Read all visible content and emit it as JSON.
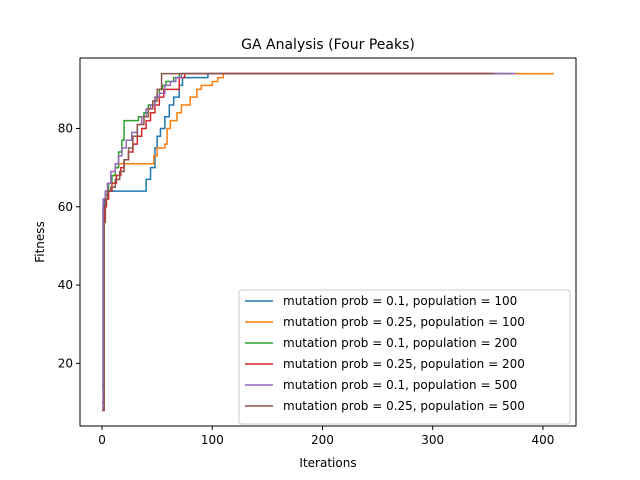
{
  "chart_data": {
    "type": "line",
    "title": "GA Analysis (Four Peaks)",
    "xlabel": "Iterations",
    "ylabel": "Fitness",
    "xlim": [
      -20,
      430
    ],
    "ylim": [
      4,
      98
    ],
    "xticks": [
      0,
      100,
      200,
      300,
      400
    ],
    "yticks": [
      20,
      40,
      60,
      80
    ],
    "grid": false,
    "legend_position": "lower-right",
    "series": [
      {
        "name": "mutation prob = 0.1, population = 100",
        "color": "#1f77b4",
        "points": [
          [
            0,
            8
          ],
          [
            1,
            60
          ],
          [
            2,
            62
          ],
          [
            3,
            63
          ],
          [
            5,
            64
          ],
          [
            10,
            64
          ],
          [
            38,
            64
          ],
          [
            40,
            67
          ],
          [
            44,
            70
          ],
          [
            48,
            75
          ],
          [
            50,
            78
          ],
          [
            53,
            80
          ],
          [
            57,
            83
          ],
          [
            61,
            86
          ],
          [
            65,
            88
          ],
          [
            70,
            91
          ],
          [
            73,
            93
          ],
          [
            95,
            93
          ],
          [
            96,
            94
          ],
          [
            380,
            94
          ]
        ]
      },
      {
        "name": "mutation prob = 0.25, population = 100",
        "color": "#ff7f0e",
        "points": [
          [
            0,
            8
          ],
          [
            2,
            58
          ],
          [
            3,
            64
          ],
          [
            5,
            66
          ],
          [
            8,
            68
          ],
          [
            12,
            70
          ],
          [
            15,
            71
          ],
          [
            43,
            71
          ],
          [
            47,
            73
          ],
          [
            50,
            75
          ],
          [
            57,
            76
          ],
          [
            59,
            80
          ],
          [
            62,
            82
          ],
          [
            68,
            84
          ],
          [
            72,
            86
          ],
          [
            80,
            88
          ],
          [
            86,
            90
          ],
          [
            90,
            91
          ],
          [
            100,
            92
          ],
          [
            105,
            93
          ],
          [
            110,
            94
          ],
          [
            410,
            94
          ]
        ]
      },
      {
        "name": "mutation prob = 0.1, population = 200",
        "color": "#2ca02c",
        "points": [
          [
            0,
            14
          ],
          [
            1,
            60
          ],
          [
            3,
            64
          ],
          [
            6,
            66
          ],
          [
            9,
            68
          ],
          [
            12,
            70
          ],
          [
            15,
            74
          ],
          [
            18,
            77
          ],
          [
            20,
            82
          ],
          [
            30,
            82
          ],
          [
            33,
            83
          ],
          [
            38,
            84
          ],
          [
            42,
            86
          ],
          [
            48,
            88
          ],
          [
            52,
            90
          ],
          [
            55,
            91
          ],
          [
            58,
            92
          ],
          [
            65,
            93
          ],
          [
            70,
            94
          ],
          [
            370,
            94
          ]
        ]
      },
      {
        "name": "mutation prob = 0.25, population = 200",
        "color": "#d62728",
        "points": [
          [
            0,
            10
          ],
          [
            2,
            60
          ],
          [
            4,
            62
          ],
          [
            6,
            64
          ],
          [
            9,
            66
          ],
          [
            13,
            68
          ],
          [
            17,
            70
          ],
          [
            20,
            72
          ],
          [
            24,
            74
          ],
          [
            28,
            76
          ],
          [
            32,
            78
          ],
          [
            36,
            80
          ],
          [
            40,
            82
          ],
          [
            44,
            84
          ],
          [
            48,
            86
          ],
          [
            52,
            88
          ],
          [
            56,
            90
          ],
          [
            66,
            90
          ],
          [
            70,
            93
          ],
          [
            75,
            94
          ],
          [
            360,
            94
          ]
        ]
      },
      {
        "name": "mutation prob = 0.1, population = 500",
        "color": "#9467bd",
        "points": [
          [
            0,
            8
          ],
          [
            1,
            62
          ],
          [
            3,
            64
          ],
          [
            5,
            66
          ],
          [
            8,
            69
          ],
          [
            12,
            71
          ],
          [
            15,
            73
          ],
          [
            18,
            75
          ],
          [
            22,
            77
          ],
          [
            27,
            79
          ],
          [
            32,
            81
          ],
          [
            36,
            83
          ],
          [
            40,
            85
          ],
          [
            44,
            86
          ],
          [
            48,
            88
          ],
          [
            52,
            89
          ],
          [
            57,
            91
          ],
          [
            62,
            92
          ],
          [
            67,
            93
          ],
          [
            72,
            94
          ],
          [
            375,
            94
          ]
        ]
      },
      {
        "name": "mutation prob = 0.25, population = 500",
        "color": "#8c564b",
        "points": [
          [
            0,
            8
          ],
          [
            2,
            56
          ],
          [
            3,
            62
          ],
          [
            5,
            64
          ],
          [
            8,
            65
          ],
          [
            12,
            67
          ],
          [
            16,
            69
          ],
          [
            20,
            72
          ],
          [
            24,
            75
          ],
          [
            28,
            78
          ],
          [
            32,
            81
          ],
          [
            38,
            83
          ],
          [
            42,
            85
          ],
          [
            46,
            87
          ],
          [
            50,
            90
          ],
          [
            54,
            94
          ],
          [
            355,
            94
          ]
        ]
      }
    ]
  }
}
